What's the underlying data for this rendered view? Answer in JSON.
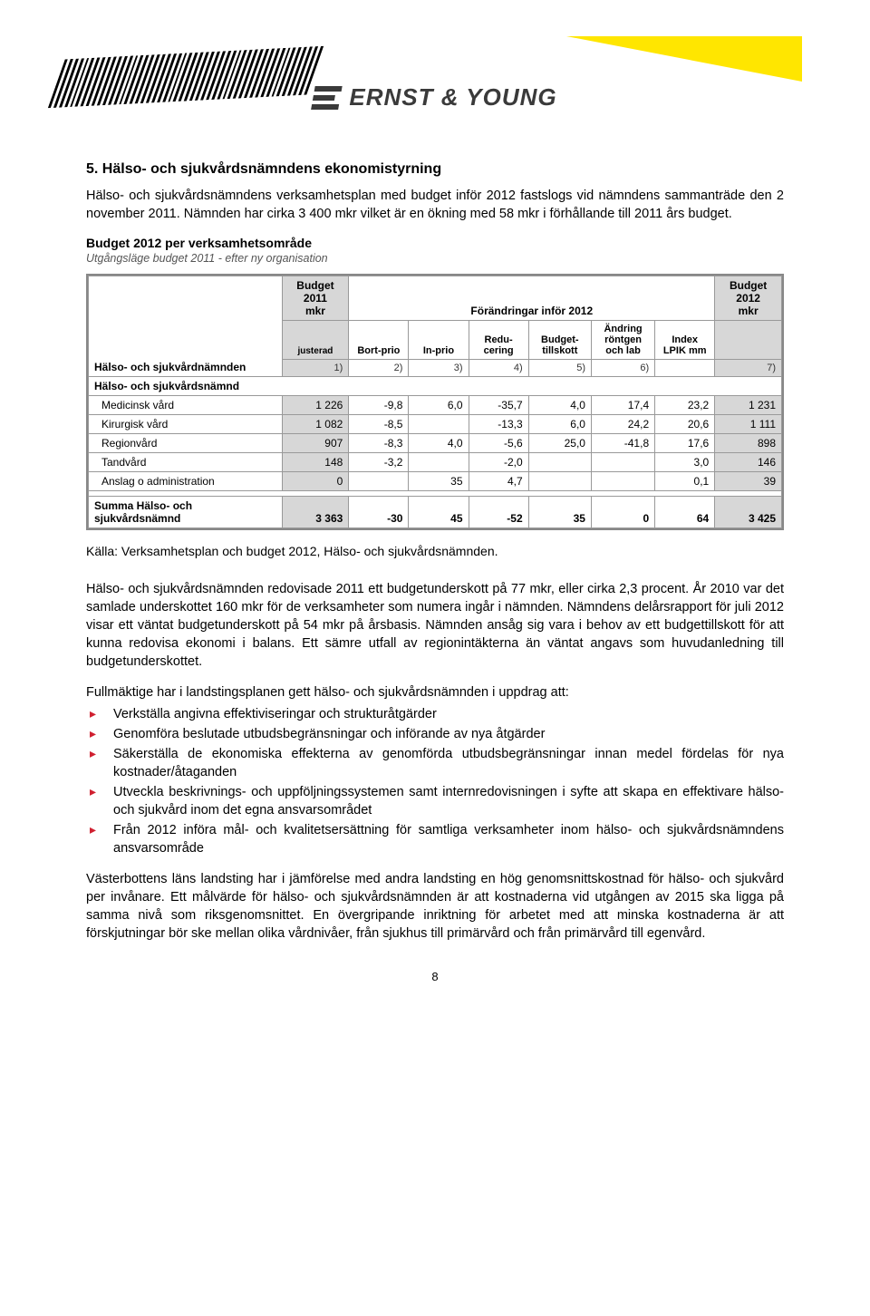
{
  "logo_text": "ERNST & YOUNG",
  "section_heading": "5.   Hälso- och sjukvårdsnämndens ekonomistyrning",
  "intro_p1": "Hälso- och sjukvårdsnämndens verksamhetsplan med budget inför 2012 fastslogs vid nämndens sammanträde den 2 november 2011.",
  "intro_p2": "Nämnden har cirka 3 400 mkr vilket är en ökning med 58 mkr i förhållande till 2011 års budget.",
  "table_caption": "Budget 2012 per verksamhetsområde",
  "table_sub": "Utgångsläge budget 2011 - efter ny organisation",
  "table": {
    "type": "table",
    "background_color": "#ffffff",
    "border_color": "#999999",
    "shade_color": "#d7d7d7",
    "font_size": 12,
    "header_group": {
      "col1": "Hälso- och sjukvårdnämnden",
      "budget2011": "Budget 2011 mkr",
      "budget2011_sub": "justerad",
      "changes": "Förändringar inför 2012",
      "changes_cols": [
        "Bort-prio",
        "In-prio",
        "Redu-cering",
        "Budget-tillskott",
        "Ändring röntgen och lab",
        "Index LPIK mm"
      ],
      "budget2012": "Budget 2012 mkr"
    },
    "num_row": [
      "1)",
      "2)",
      "3)",
      "4)",
      "5)",
      "6)",
      "7)"
    ],
    "section_row": "Hälso- och sjukvårdsnämnd",
    "rows": [
      {
        "label": "Medicinsk vård",
        "c": [
          "1 226",
          "-9,8",
          "6,0",
          "-35,7",
          "4,0",
          "17,4",
          "23,2",
          "1 231"
        ]
      },
      {
        "label": "Kirurgisk vård",
        "c": [
          "1 082",
          "-8,5",
          "",
          "-13,3",
          "6,0",
          "24,2",
          "20,6",
          "1 111"
        ]
      },
      {
        "label": "Regionvård",
        "c": [
          "907",
          "-8,3",
          "4,0",
          "-5,6",
          "25,0",
          "-41,8",
          "17,6",
          "898"
        ]
      },
      {
        "label": "Tandvård",
        "c": [
          "148",
          "-3,2",
          "",
          "-2,0",
          "",
          "",
          "3,0",
          "146"
        ]
      },
      {
        "label": "Anslag o administration",
        "c": [
          "0",
          "",
          "35",
          "4,7",
          "",
          "",
          "0,1",
          "39"
        ]
      }
    ],
    "sum_label": "Summa Hälso- och sjukvårdsnämnd",
    "sum": [
      "3 363",
      "-30",
      "45",
      "-52",
      "35",
      "0",
      "64",
      "3 425"
    ]
  },
  "source": "Källa: Verksamhetsplan och budget 2012, Hälso- och sjukvårdsnämnden.",
  "body_p1": "Hälso- och sjukvårdsnämnden redovisade 2011 ett budgetunderskott på 77 mkr, eller cirka 2,3 procent. År 2010 var det samlade underskottet 160 mkr för de verksamheter som numera ingår i nämnden. Nämndens delårsrapport för juli 2012 visar ett väntat budgetunderskott på 54 mkr på årsbasis. Nämnden ansåg sig vara i behov av ett budgettillskott för att kunna redovisa ekonomi i balans. Ett sämre utfall av regionintäkterna än väntat angavs som huvudanledning till budgetunderskottet.",
  "list_intro": "Fullmäktige har i landstingsplanen gett hälso- och sjukvårdsnämnden i uppdrag att:",
  "bullets": [
    "Verkställa angivna effektiviseringar och strukturåtgärder",
    "Genomföra beslutade utbudsbegränsningar och införande av nya åtgärder",
    "Säkerställa de ekonomiska effekterna av genomförda utbudsbegränsningar innan medel fördelas för nya kostnader/åtaganden",
    "Utveckla beskrivnings- och uppföljningssystemen samt internredovisningen i syfte att skapa en effektivare hälso- och sjukvård inom det egna ansvarsområdet",
    "Från 2012 införa mål- och kvalitetsersättning för samtliga verksamheter inom hälso- och sjukvårdsnämndens ansvarsområde"
  ],
  "body_p2": "Västerbottens läns landsting har i jämförelse med andra landsting en hög genomsnittskostnad för hälso- och sjukvård per invånare. Ett målvärde för hälso- och sjukvårdsnämnden är att kostnaderna vid utgången av 2015 ska ligga på samma nivå som riksgenomsnittet. En övergripande inriktning för arbetet med att minska kostnaderna är att förskjutningar bör ske mellan olika vårdnivåer, från sjukhus till primärvård och från primärvård till egenvård.",
  "page_number": "8"
}
